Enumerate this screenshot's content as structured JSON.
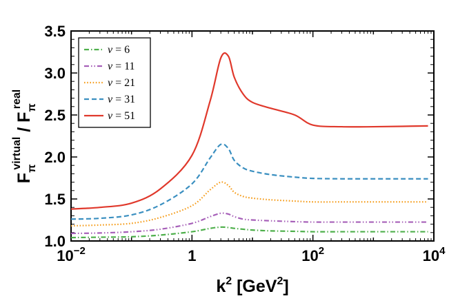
{
  "chart_data": {
    "type": "line",
    "xscale": "log",
    "xlim": [
      0.01,
      10000
    ],
    "ylim": [
      1.0,
      3.5
    ],
    "xlabel": {
      "base": "k",
      "sup": "2",
      "mid": " [GeV",
      "sup2": "2",
      "end": "]"
    },
    "ylabel": {
      "f1": "F",
      "sub1": "π",
      "sup1": "virtual",
      "slash": " / ",
      "f2": "F",
      "sub2": "π",
      "sup2": "real"
    },
    "x_ticks": [
      {
        "value": 0.01,
        "base": "10",
        "exp": "−2"
      },
      {
        "value": 1,
        "base": "1",
        "exp": ""
      },
      {
        "value": 100,
        "base": "10",
        "exp": "2"
      },
      {
        "value": 10000,
        "base": "10",
        "exp": "4"
      }
    ],
    "y_ticks": [
      {
        "value": 1.0,
        "label": "1.0"
      },
      {
        "value": 1.5,
        "label": "1.5"
      },
      {
        "value": 2.0,
        "label": "2.0"
      },
      {
        "value": 2.5,
        "label": "2.5"
      },
      {
        "value": 3.0,
        "label": "3.0"
      },
      {
        "value": 3.5,
        "label": "3.5"
      }
    ],
    "legend_position": "top-left",
    "legend_symbol": "v",
    "legend_eq": " = ",
    "x": [
      0.01,
      0.03,
      0.1,
      0.3,
      1,
      2,
      3,
      4,
      5,
      7,
      10,
      20,
      50,
      100,
      300,
      1000,
      3000,
      8000
    ],
    "series": [
      {
        "name": "6",
        "color": "#4daf4a",
        "dash": "dashdot",
        "values": [
          1.04,
          1.045,
          1.05,
          1.07,
          1.11,
          1.15,
          1.165,
          1.16,
          1.15,
          1.14,
          1.13,
          1.12,
          1.115,
          1.11,
          1.11,
          1.11,
          1.11,
          1.11
        ]
      },
      {
        "name": "11",
        "color": "#a65fb8",
        "dash": "dashdotdot",
        "values": [
          1.09,
          1.095,
          1.11,
          1.14,
          1.21,
          1.29,
          1.33,
          1.32,
          1.29,
          1.26,
          1.25,
          1.24,
          1.23,
          1.225,
          1.225,
          1.225,
          1.225,
          1.225
        ]
      },
      {
        "name": "21",
        "color": "#f59c1a",
        "dash": "dotted",
        "values": [
          1.18,
          1.19,
          1.21,
          1.28,
          1.42,
          1.61,
          1.7,
          1.66,
          1.58,
          1.53,
          1.51,
          1.49,
          1.475,
          1.465,
          1.465,
          1.465,
          1.465,
          1.465
        ]
      },
      {
        "name": "31",
        "color": "#3a8fc0",
        "dash": "dashed",
        "values": [
          1.26,
          1.27,
          1.31,
          1.43,
          1.68,
          1.99,
          2.15,
          2.1,
          1.96,
          1.87,
          1.83,
          1.79,
          1.76,
          1.745,
          1.74,
          1.74,
          1.74,
          1.74
        ]
      },
      {
        "name": "51",
        "color": "#e0382b",
        "dash": "solid",
        "values": [
          1.38,
          1.4,
          1.45,
          1.62,
          2.02,
          2.67,
          3.18,
          3.2,
          2.95,
          2.75,
          2.65,
          2.58,
          2.5,
          2.38,
          2.36,
          2.36,
          2.365,
          2.37
        ]
      }
    ]
  }
}
